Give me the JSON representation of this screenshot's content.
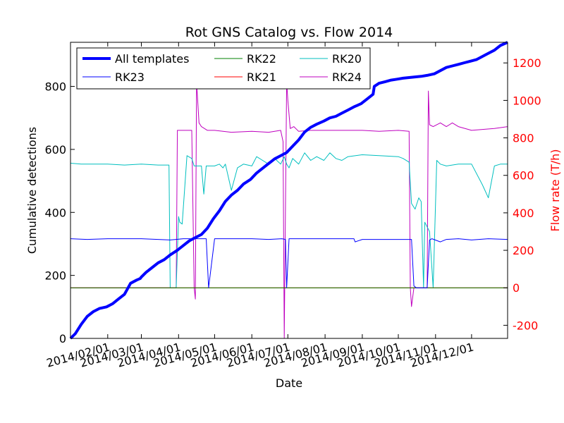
{
  "chart_data": {
    "type": "line",
    "title": "Rot GNS Catalog vs. Flow 2014",
    "xlabel": "Date",
    "ylabel_left": "Cumulative detections",
    "ylabel_right": "Flow rate (T/h)",
    "right_axis_color": "#ff0000",
    "x_range": [
      "2014-01-01",
      "2014-12-31"
    ],
    "x_ticks": [
      "2014/02/01",
      "2014/03/01",
      "2014/04/01",
      "2014/05/01",
      "2014/06/01",
      "2014/07/01",
      "2014/08/01",
      "2014/09/01",
      "2014/10/01",
      "2014/11/01",
      "2014/12/01"
    ],
    "y_left": {
      "min": 0,
      "max": 940,
      "ticks": [
        0,
        200,
        400,
        600,
        800
      ]
    },
    "y_right": {
      "min": -270,
      "max": 1310,
      "ticks": [
        -200,
        0,
        200,
        400,
        600,
        800,
        1000,
        1200
      ]
    },
    "legend": {
      "position": "top-left",
      "columns": 3
    },
    "series": [
      {
        "name": "All templates",
        "axis": "left",
        "color": "#0000ff",
        "width": 4,
        "x": [
          "2014-01-01",
          "2014-01-05",
          "2014-01-10",
          "2014-01-15",
          "2014-01-20",
          "2014-01-25",
          "2014-01-31",
          "2014-02-05",
          "2014-02-10",
          "2014-02-15",
          "2014-02-20",
          "2014-02-25",
          "2014-02-28",
          "2014-03-01",
          "2014-03-05",
          "2014-03-10",
          "2014-03-15",
          "2014-03-20",
          "2014-03-25",
          "2014-03-31",
          "2014-04-05",
          "2014-04-10",
          "2014-04-15",
          "2014-04-20",
          "2014-04-25",
          "2014-04-30",
          "2014-05-05",
          "2014-05-10",
          "2014-05-15",
          "2014-05-20",
          "2014-05-25",
          "2014-05-31",
          "2014-06-05",
          "2014-06-10",
          "2014-06-15",
          "2014-06-20",
          "2014-06-25",
          "2014-06-30",
          "2014-07-05",
          "2014-07-10",
          "2014-07-15",
          "2014-07-20",
          "2014-07-25",
          "2014-07-31",
          "2014-08-05",
          "2014-08-10",
          "2014-08-15",
          "2014-08-20",
          "2014-08-25",
          "2014-08-31",
          "2014-09-05",
          "2014-09-10",
          "2014-09-11",
          "2014-09-15",
          "2014-09-20",
          "2014-09-25",
          "2014-09-30",
          "2014-10-05",
          "2014-10-10",
          "2014-10-15",
          "2014-10-20",
          "2014-10-25",
          "2014-10-31",
          "2014-11-05",
          "2014-11-10",
          "2014-11-15",
          "2014-11-20",
          "2014-11-25",
          "2014-11-30",
          "2014-12-05",
          "2014-12-10",
          "2014-12-15",
          "2014-12-20",
          "2014-12-25",
          "2014-12-31"
        ],
        "y": [
          0,
          15,
          45,
          70,
          85,
          95,
          100,
          110,
          125,
          140,
          175,
          185,
          190,
          195,
          210,
          225,
          240,
          250,
          265,
          280,
          295,
          310,
          320,
          330,
          350,
          380,
          405,
          435,
          455,
          470,
          490,
          505,
          525,
          540,
          555,
          570,
          580,
          590,
          610,
          630,
          655,
          670,
          680,
          690,
          700,
          705,
          715,
          725,
          735,
          745,
          760,
          775,
          800,
          810,
          815,
          820,
          823,
          826,
          828,
          830,
          832,
          835,
          840,
          850,
          860,
          865,
          870,
          875,
          880,
          885,
          895,
          905,
          915,
          930,
          940
        ]
      },
      {
        "name": "RK23",
        "axis": "right",
        "color": "#0000ff",
        "width": 1,
        "x": [
          "2014-01-01",
          "2014-01-15",
          "2014-02-01",
          "2014-02-15",
          "2014-03-01",
          "2014-03-15",
          "2014-03-25",
          "2014-04-05",
          "2014-04-12",
          "2014-04-16",
          "2014-04-18",
          "2014-04-20",
          "2014-04-24",
          "2014-04-26",
          "2014-05-01",
          "2014-05-15",
          "2014-05-18",
          "2014-05-20",
          "2014-06-01",
          "2014-06-15",
          "2014-06-26",
          "2014-06-29",
          "2014-06-30",
          "2014-07-02",
          "2014-07-03",
          "2014-07-15",
          "2014-08-01",
          "2014-08-15",
          "2014-08-25",
          "2014-08-26",
          "2014-09-01",
          "2014-09-15",
          "2014-10-01",
          "2014-10-10",
          "2014-10-12",
          "2014-10-14",
          "2014-10-16",
          "2014-10-18",
          "2014-10-25",
          "2014-10-27",
          "2014-10-29",
          "2014-11-05",
          "2014-11-10",
          "2014-11-20",
          "2014-12-01",
          "2014-12-15",
          "2014-12-31"
        ],
        "y": [
          262,
          258,
          262,
          262,
          262,
          258,
          255,
          262,
          262,
          262,
          262,
          262,
          262,
          0,
          262,
          262,
          262,
          262,
          262,
          258,
          262,
          258,
          0,
          262,
          262,
          262,
          262,
          262,
          262,
          245,
          258,
          258,
          258,
          258,
          258,
          10,
          0,
          0,
          0,
          255,
          262,
          245,
          258,
          262,
          255,
          262,
          258
        ]
      },
      {
        "name": "RK22",
        "axis": "right",
        "color": "#008000",
        "width": 1,
        "x": [
          "2014-01-01",
          "2014-12-31"
        ],
        "y": [
          0,
          0
        ]
      },
      {
        "name": "RK21",
        "axis": "right",
        "color": "#ff0000",
        "width": 1,
        "x": [
          "2014-01-01",
          "2014-12-31"
        ],
        "y": [
          0,
          0
        ]
      },
      {
        "name": "RK20",
        "axis": "right",
        "color": "#00bfbf",
        "width": 1,
        "x": [
          "2014-01-01",
          "2014-01-10",
          "2014-02-01",
          "2014-02-15",
          "2014-03-01",
          "2014-03-15",
          "2014-03-24",
          "2014-03-25",
          "2014-03-30",
          "2014-04-01",
          "2014-04-02",
          "2014-04-04",
          "2014-04-08",
          "2014-04-12",
          "2014-04-14",
          "2014-04-16",
          "2014-04-18",
          "2014-04-20",
          "2014-04-22",
          "2014-04-24",
          "2014-05-01",
          "2014-05-05",
          "2014-05-08",
          "2014-05-10",
          "2014-05-15",
          "2014-05-20",
          "2014-05-25",
          "2014-06-01",
          "2014-06-05",
          "2014-06-10",
          "2014-06-15",
          "2014-06-20",
          "2014-06-25",
          "2014-06-28",
          "2014-06-30",
          "2014-07-02",
          "2014-07-05",
          "2014-07-10",
          "2014-07-15",
          "2014-07-20",
          "2014-07-25",
          "2014-07-31",
          "2014-08-05",
          "2014-08-10",
          "2014-08-15",
          "2014-08-20",
          "2014-09-01",
          "2014-09-15",
          "2014-10-01",
          "2014-10-05",
          "2014-10-10",
          "2014-10-12",
          "2014-10-15",
          "2014-10-18",
          "2014-10-20",
          "2014-10-22",
          "2014-10-23",
          "2014-10-27",
          "2014-10-30",
          "2014-11-02",
          "2014-11-05",
          "2014-11-10",
          "2014-11-20",
          "2014-12-01",
          "2014-12-10",
          "2014-12-15",
          "2014-12-20",
          "2014-12-25",
          "2014-12-31"
        ],
        "y": [
          665,
          660,
          660,
          655,
          660,
          655,
          655,
          0,
          0,
          380,
          350,
          340,
          705,
          690,
          650,
          650,
          650,
          650,
          500,
          650,
          650,
          660,
          640,
          660,
          520,
          640,
          660,
          650,
          700,
          680,
          660,
          690,
          660,
          700,
          660,
          640,
          690,
          660,
          720,
          680,
          700,
          680,
          720,
          690,
          680,
          700,
          710,
          705,
          700,
          690,
          670,
          450,
          420,
          480,
          460,
          0,
          350,
          300,
          0,
          680,
          660,
          650,
          660,
          660,
          550,
          480,
          650,
          660,
          660
        ]
      },
      {
        "name": "RK24",
        "axis": "right",
        "color": "#bf00bf",
        "width": 1,
        "x": [
          "2014-01-01",
          "2014-03-30",
          "2014-03-31",
          "2014-04-05",
          "2014-04-12",
          "2014-04-14",
          "2014-04-15",
          "2014-04-16",
          "2014-04-18",
          "2014-04-20",
          "2014-04-25",
          "2014-05-01",
          "2014-05-15",
          "2014-06-01",
          "2014-06-15",
          "2014-06-25",
          "2014-06-27",
          "2014-06-28",
          "2014-06-30",
          "2014-07-01",
          "2014-07-03",
          "2014-07-06",
          "2014-07-10",
          "2014-07-20",
          "2014-08-01",
          "2014-08-15",
          "2014-09-01",
          "2014-09-15",
          "2014-10-01",
          "2014-10-10",
          "2014-10-11",
          "2014-10-12",
          "2014-10-14",
          "2014-10-20",
          "2014-10-25",
          "2014-10-26",
          "2014-10-27",
          "2014-10-30",
          "2014-11-05",
          "2014-11-10",
          "2014-11-15",
          "2014-11-20",
          "2014-12-01",
          "2014-12-10",
          "2014-12-20",
          "2014-12-31"
        ],
        "y": [
          0,
          0,
          840,
          840,
          840,
          0,
          -60,
          1100,
          880,
          860,
          840,
          840,
          830,
          835,
          830,
          840,
          780,
          -270,
          1100,
          1000,
          850,
          860,
          835,
          840,
          840,
          840,
          840,
          835,
          840,
          835,
          0,
          -100,
          0,
          0,
          0,
          1050,
          870,
          860,
          880,
          860,
          880,
          860,
          840,
          845,
          850,
          860
        ]
      }
    ]
  }
}
